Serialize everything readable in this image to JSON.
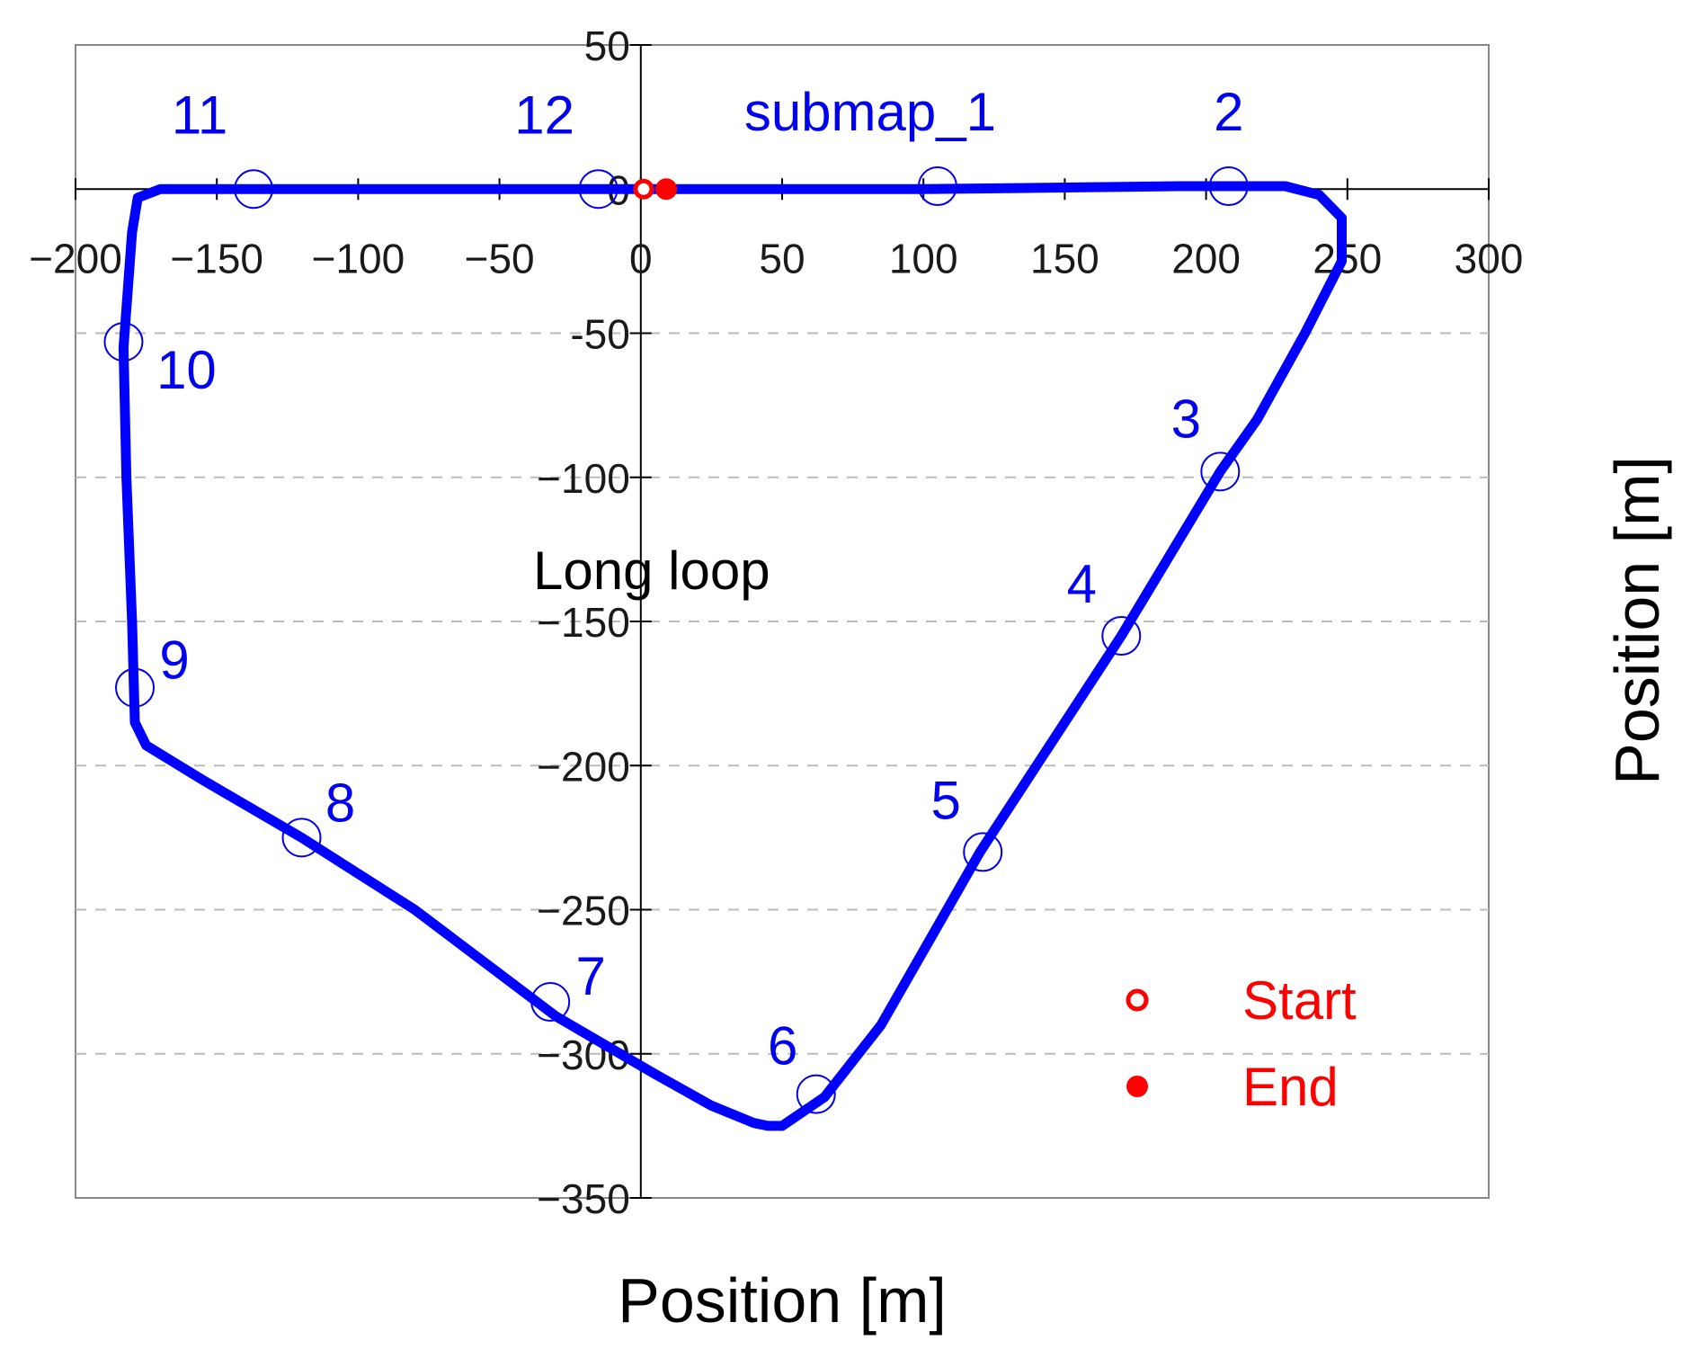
{
  "chart_data": {
    "type": "line",
    "title": "",
    "xlabel": "Position [m]",
    "ylabel": "Position [m]",
    "xlim": [
      -200,
      300
    ],
    "ylim": [
      -350,
      50
    ],
    "x_ticks": [
      -200,
      -150,
      -100,
      -50,
      0,
      50,
      100,
      150,
      200,
      250,
      300
    ],
    "y_ticks": [
      50,
      0,
      -50,
      -100,
      -150,
      -200,
      -250,
      -300,
      -350
    ],
    "x_tick_labels": [
      "−200",
      "−150",
      "−100",
      "−50",
      "0",
      "50",
      "100",
      "150",
      "200",
      "250",
      "300"
    ],
    "y_tick_labels": [
      "50",
      "0",
      "-50",
      "−100",
      "−150",
      "−200",
      "−250",
      "−300",
      "−350"
    ],
    "grid": "horizontal dashed",
    "annotation": "Long loop",
    "series": [
      {
        "color": "#0000ff",
        "points": [
          [
            0,
            0
          ],
          [
            100,
            0
          ],
          [
            190,
            1
          ],
          [
            228,
            1
          ],
          [
            240,
            -2
          ],
          [
            248,
            -10
          ],
          [
            248,
            -25
          ],
          [
            235,
            -50
          ],
          [
            218,
            -80
          ],
          [
            205,
            -98
          ],
          [
            170,
            -155
          ],
          [
            120,
            -230
          ],
          [
            85,
            -290
          ],
          [
            65,
            -315
          ],
          [
            50,
            -325
          ],
          [
            45,
            -325
          ],
          [
            40,
            -324
          ],
          [
            25,
            -318
          ],
          [
            5,
            -307
          ],
          [
            -30,
            -287
          ],
          [
            -80,
            -250
          ],
          [
            -120,
            -225
          ],
          [
            -155,
            -205
          ],
          [
            -175,
            -193
          ],
          [
            -179,
            -185
          ],
          [
            -180,
            -150
          ],
          [
            -182,
            -100
          ],
          [
            -183,
            -55
          ],
          [
            -180,
            -15
          ],
          [
            -178,
            -3
          ],
          [
            -170,
            0
          ],
          [
            -100,
            0
          ],
          [
            -15,
            0
          ],
          [
            0,
            0
          ]
        ]
      }
    ],
    "submaps": [
      {
        "label": "submap_1",
        "x": 105,
        "y": 1
      },
      {
        "label": "2",
        "x": 208,
        "y": 1
      },
      {
        "label": "3",
        "x": 205,
        "y": -98
      },
      {
        "label": "4",
        "x": 170,
        "y": -155
      },
      {
        "label": "5",
        "x": 121,
        "y": -230
      },
      {
        "label": "6",
        "x": 62,
        "y": -314
      },
      {
        "label": "7",
        "x": -32,
        "y": -282
      },
      {
        "label": "8",
        "x": -120,
        "y": -225
      },
      {
        "label": "9",
        "x": -179,
        "y": -173
      },
      {
        "label": "10",
        "x": -183,
        "y": -53
      },
      {
        "label": "11",
        "x": -137,
        "y": 0
      },
      {
        "label": "12",
        "x": -15,
        "y": 0
      }
    ],
    "start": {
      "x": 1,
      "y": 0
    },
    "end": {
      "x": 9,
      "y": 0
    },
    "legend": {
      "placement": "bottom-right",
      "entries": [
        {
          "label": "Start",
          "marker": "open-circle",
          "color": "#ff0000"
        },
        {
          "label": "End",
          "marker": "filled-circle",
          "color": "#ff0000"
        }
      ]
    },
    "colors": {
      "path": "#0000ff",
      "submap": "#0000ee",
      "marker": "#ff0000",
      "grid": "#bbbbbb"
    }
  }
}
